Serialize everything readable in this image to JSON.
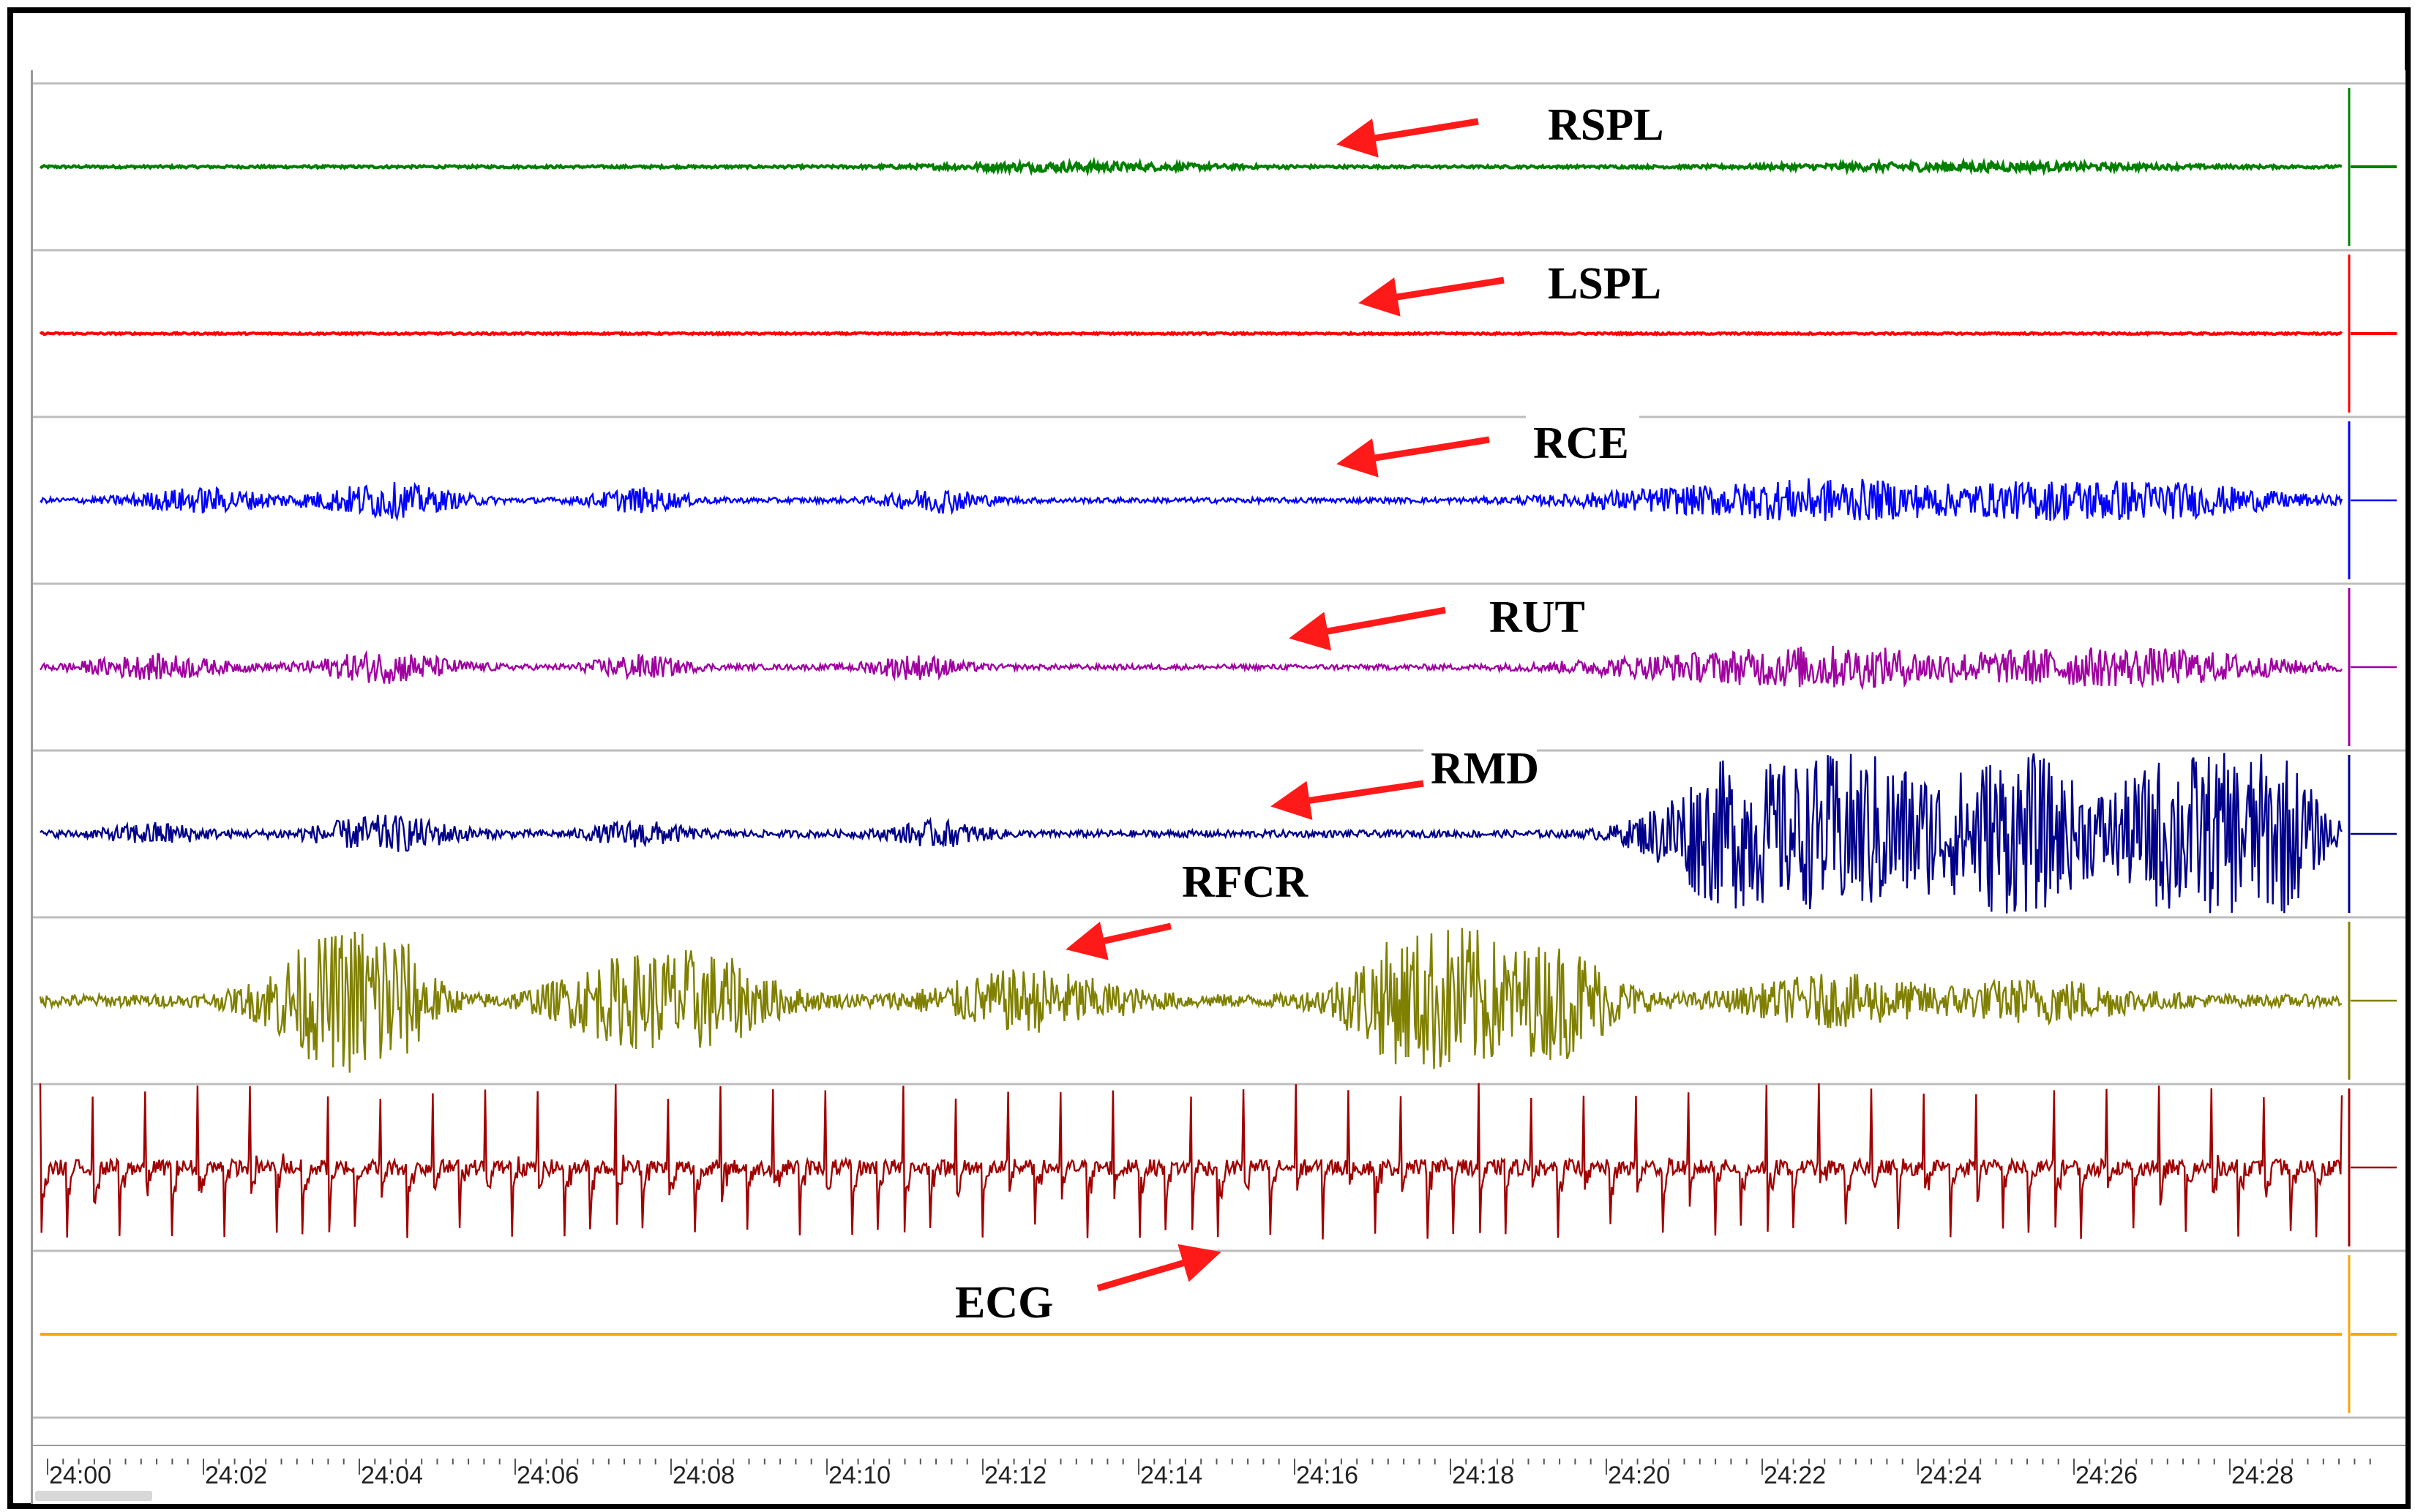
{
  "channels": [
    {
      "id": "rspl",
      "label": "RSPL",
      "color": "#008000",
      "amp": 0.07,
      "bursts": [
        [
          0.45,
          0.06,
          0.2
        ],
        [
          0.84,
          0.08,
          0.2
        ]
      ],
      "kind": "flat"
    },
    {
      "id": "lspl",
      "label": "LSPL",
      "color": "#ff0000",
      "amp": 0.05,
      "bursts": [],
      "kind": "flat"
    },
    {
      "id": "rce",
      "label": "RCE",
      "color": "#0000ff",
      "amp": 0.15,
      "bursts": [
        [
          0.07,
          0.03,
          0.6
        ],
        [
          0.15,
          0.03,
          0.9
        ],
        [
          0.26,
          0.02,
          0.6
        ],
        [
          0.39,
          0.02,
          0.6
        ],
        [
          0.71,
          0.05,
          0.5
        ],
        [
          0.78,
          0.05,
          1.0
        ],
        [
          0.87,
          0.05,
          0.8
        ],
        [
          0.93,
          0.05,
          0.7
        ]
      ],
      "kind": "emg"
    },
    {
      "id": "rut",
      "label": "RUT",
      "color": "#a000a0",
      "amp": 0.15,
      "bursts": [
        [
          0.05,
          0.03,
          0.6
        ],
        [
          0.15,
          0.03,
          0.8
        ],
        [
          0.26,
          0.02,
          0.6
        ],
        [
          0.38,
          0.02,
          0.6
        ],
        [
          0.71,
          0.05,
          0.5
        ],
        [
          0.78,
          0.05,
          1.0
        ],
        [
          0.87,
          0.05,
          0.7
        ],
        [
          0.93,
          0.05,
          0.7
        ]
      ],
      "kind": "emg"
    },
    {
      "id": "rmd",
      "label": "RMD",
      "color": "#00008b",
      "amp": 0.2,
      "bursts": [
        [
          0.05,
          0.02,
          0.5
        ],
        [
          0.15,
          0.03,
          0.9
        ],
        [
          0.26,
          0.02,
          0.6
        ],
        [
          0.39,
          0.02,
          0.6
        ],
        [
          0.73,
          0.03,
          3.5
        ],
        [
          0.79,
          0.04,
          4.5
        ],
        [
          0.86,
          0.03,
          4.5
        ],
        [
          0.93,
          0.03,
          4.5
        ],
        [
          0.97,
          0.02,
          4.5
        ]
      ],
      "kind": "emg"
    },
    {
      "id": "rfcr",
      "label": "RFCR",
      "color": "#808000",
      "amp": 0.35,
      "bursts": [
        [
          0.12,
          0.025,
          2.8
        ],
        [
          0.15,
          0.02,
          3.5
        ],
        [
          0.25,
          0.03,
          1.8
        ],
        [
          0.29,
          0.03,
          2.2
        ],
        [
          0.43,
          0.04,
          1.5
        ],
        [
          0.59,
          0.025,
          3.0
        ],
        [
          0.62,
          0.02,
          3.0
        ],
        [
          0.66,
          0.025,
          3.0
        ],
        [
          0.78,
          0.04,
          1.2
        ],
        [
          0.87,
          0.04,
          1.0
        ]
      ],
      "kind": "emg"
    },
    {
      "id": "ecg",
      "label": "",
      "color": "#a00000",
      "amp": 0.3,
      "bursts": [],
      "kind": "ecg"
    },
    {
      "id": "ch8",
      "label": "ECG",
      "color": "#ffa500",
      "amp": 0.0,
      "bursts": [],
      "kind": "flat"
    }
  ],
  "time_axis": {
    "ticks": [
      "24:00",
      "24:02",
      "24:04",
      "24:06",
      "24:08",
      "24:10",
      "24:12",
      "24:14",
      "24:16",
      "24:18",
      "24:20",
      "24:22",
      "24:24",
      "24:26",
      "24:28"
    ]
  }
}
